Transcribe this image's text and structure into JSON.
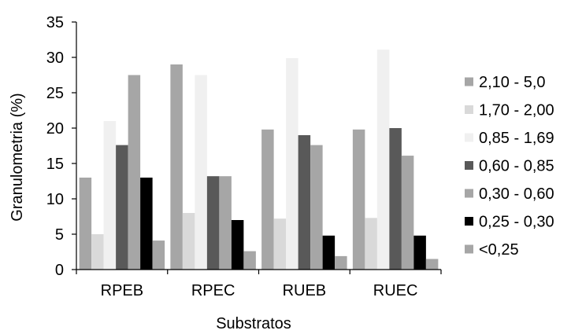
{
  "chart_data": {
    "type": "bar",
    "title": "",
    "xlabel": "Substratos",
    "ylabel": "Granulometria (%)",
    "ylim": [
      0,
      35
    ],
    "yticks": [
      0,
      5,
      10,
      15,
      20,
      25,
      30,
      35
    ],
    "categories": [
      "RPEB",
      "RPEC",
      "RUEB",
      "RUEC"
    ],
    "legend_position": "right",
    "grid": false,
    "series": [
      {
        "name": "2,10 - 5,0",
        "color": "#a6a6a6",
        "values": [
          13.0,
          29.0,
          19.8,
          19.8
        ]
      },
      {
        "name": "1,70 - 2,00",
        "color": "#d9d9d9",
        "values": [
          5.0,
          8.0,
          7.2,
          7.3
        ]
      },
      {
        "name": "0,85 - 1,69",
        "color": "#f0f0f0",
        "values": [
          21.0,
          27.5,
          29.9,
          31.1
        ]
      },
      {
        "name": "0,60 - 0,85",
        "color": "#595959",
        "values": [
          17.6,
          13.2,
          19.0,
          20.0
        ]
      },
      {
        "name": "0,30 - 0,60",
        "color": "#a6a6a6",
        "values": [
          27.5,
          13.2,
          17.6,
          16.1
        ]
      },
      {
        "name": "0,25 - 0,30",
        "color": "#000000",
        "values": [
          13.0,
          7.0,
          4.8,
          4.8
        ]
      },
      {
        "name": "<0,25",
        "color": "#a6a6a6",
        "values": [
          4.1,
          2.6,
          1.9,
          1.5
        ]
      }
    ]
  }
}
